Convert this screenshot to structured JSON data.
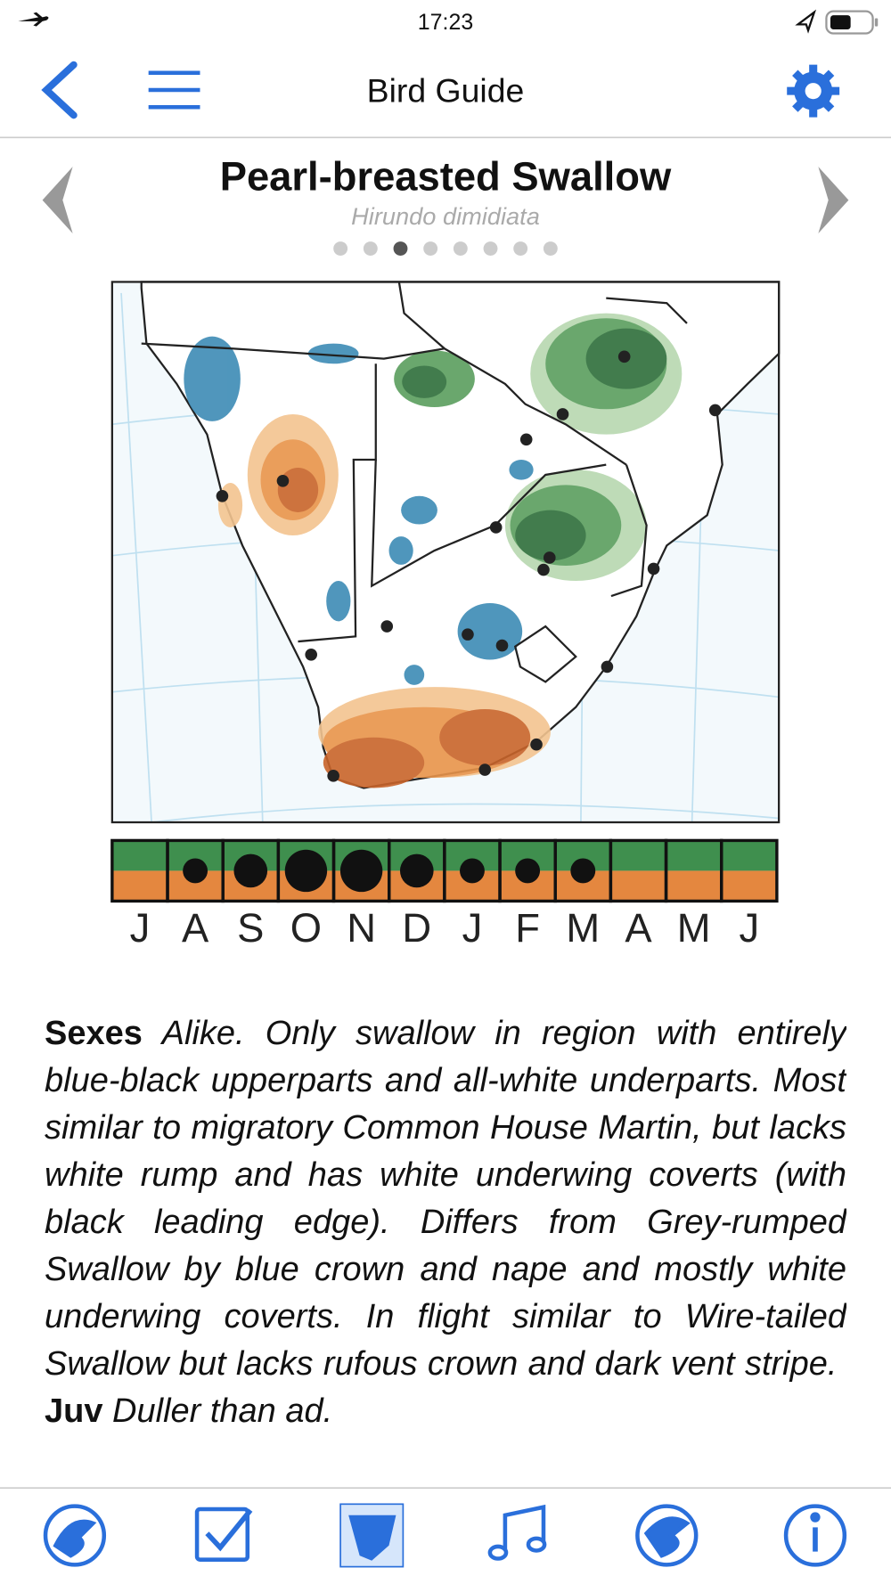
{
  "status_bar": {
    "time": "17:23"
  },
  "nav": {
    "title": "Bird Guide"
  },
  "species": {
    "name": "Pearl-breasted Swallow",
    "scientific_name": "Hirundo dimidiata"
  },
  "page_indicator": {
    "count": 8,
    "current": 3
  },
  "months": {
    "labels": [
      "J",
      "A",
      "S",
      "O",
      "N",
      "D",
      "J",
      "F",
      "M",
      "A",
      "M",
      "J"
    ],
    "abundance": [
      0,
      1,
      2,
      3,
      3,
      2,
      1,
      1,
      1,
      0,
      0,
      0
    ]
  },
  "description": [
    {
      "bold": "Sexes",
      "text": "Alike. Only swallow in region with entirely blue-black upperparts and all-white underparts. Most similar to migratory Common House Martin, but lacks white rump and has white underwing coverts (with black leading edge). Differs from Grey-rumped Swallow by blue crown and nape and mostly white underwing coverts. In flight similar to Wire-tailed Swallow but lacks rufous crown and dark vent stripe."
    },
    {
      "bold": "Juv",
      "text": "Duller than ad."
    }
  ]
}
